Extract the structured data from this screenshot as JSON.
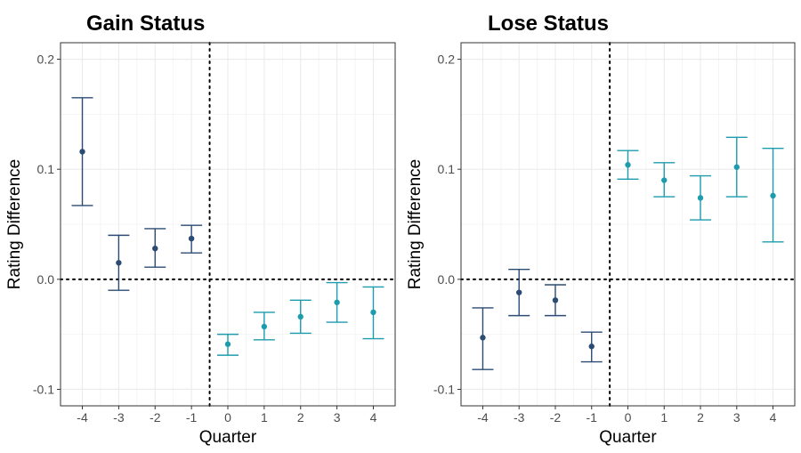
{
  "chart_data": [
    {
      "type": "errorbar",
      "title": "Gain Status",
      "xlabel": "Quarter",
      "ylabel": "Rating Difference",
      "x_ticks": [
        "-4",
        "-3",
        "-2",
        "-1",
        "0",
        "1",
        "2",
        "3",
        "4"
      ],
      "y_ticks": [
        "-0.1",
        "0.0",
        "0.1",
        "0.2"
      ],
      "xlim": [
        -4.6,
        4.6
      ],
      "ylim": [
        -0.115,
        0.215
      ],
      "grid": true,
      "reference_lines": {
        "vertical_x": -0.5,
        "horizontal_y": 0.0
      },
      "colors": {
        "pre": "#2b4b73",
        "post": "#1c9cad"
      },
      "points": [
        {
          "x": -4,
          "y": 0.116,
          "lo": 0.067,
          "hi": 0.165,
          "group": "pre"
        },
        {
          "x": -3,
          "y": 0.015,
          "lo": -0.01,
          "hi": 0.04,
          "group": "pre"
        },
        {
          "x": -2,
          "y": 0.028,
          "lo": 0.011,
          "hi": 0.046,
          "group": "pre"
        },
        {
          "x": -1,
          "y": 0.037,
          "lo": 0.024,
          "hi": 0.049,
          "group": "pre"
        },
        {
          "x": 0,
          "y": -0.059,
          "lo": -0.069,
          "hi": -0.05,
          "group": "post"
        },
        {
          "x": 1,
          "y": -0.043,
          "lo": -0.055,
          "hi": -0.03,
          "group": "post"
        },
        {
          "x": 2,
          "y": -0.034,
          "lo": -0.049,
          "hi": -0.019,
          "group": "post"
        },
        {
          "x": 3,
          "y": -0.021,
          "lo": -0.039,
          "hi": -0.003,
          "group": "post"
        },
        {
          "x": 4,
          "y": -0.03,
          "lo": -0.054,
          "hi": -0.007,
          "group": "post"
        }
      ]
    },
    {
      "type": "errorbar",
      "title": "Lose Status",
      "xlabel": "Quarter",
      "ylabel": "Rating Difference",
      "x_ticks": [
        "-4",
        "-3",
        "-2",
        "-1",
        "0",
        "1",
        "2",
        "3",
        "4"
      ],
      "y_ticks": [
        "-0.1",
        "0.0",
        "0.1",
        "0.2"
      ],
      "xlim": [
        -4.6,
        4.6
      ],
      "ylim": [
        -0.115,
        0.215
      ],
      "grid": true,
      "reference_lines": {
        "vertical_x": -0.5,
        "horizontal_y": 0.0
      },
      "colors": {
        "pre": "#2b4b73",
        "post": "#1c9cad"
      },
      "points": [
        {
          "x": -4,
          "y": -0.053,
          "lo": -0.082,
          "hi": -0.026,
          "group": "pre"
        },
        {
          "x": -3,
          "y": -0.012,
          "lo": -0.033,
          "hi": 0.009,
          "group": "pre"
        },
        {
          "x": -2,
          "y": -0.019,
          "lo": -0.033,
          "hi": -0.005,
          "group": "pre"
        },
        {
          "x": -1,
          "y": -0.061,
          "lo": -0.075,
          "hi": -0.048,
          "group": "pre"
        },
        {
          "x": 0,
          "y": 0.104,
          "lo": 0.091,
          "hi": 0.117,
          "group": "post"
        },
        {
          "x": 1,
          "y": 0.09,
          "lo": 0.075,
          "hi": 0.106,
          "group": "post"
        },
        {
          "x": 2,
          "y": 0.074,
          "lo": 0.054,
          "hi": 0.094,
          "group": "post"
        },
        {
          "x": 3,
          "y": 0.102,
          "lo": 0.075,
          "hi": 0.129,
          "group": "post"
        },
        {
          "x": 4,
          "y": 0.076,
          "lo": 0.034,
          "hi": 0.119,
          "group": "post"
        }
      ]
    }
  ]
}
